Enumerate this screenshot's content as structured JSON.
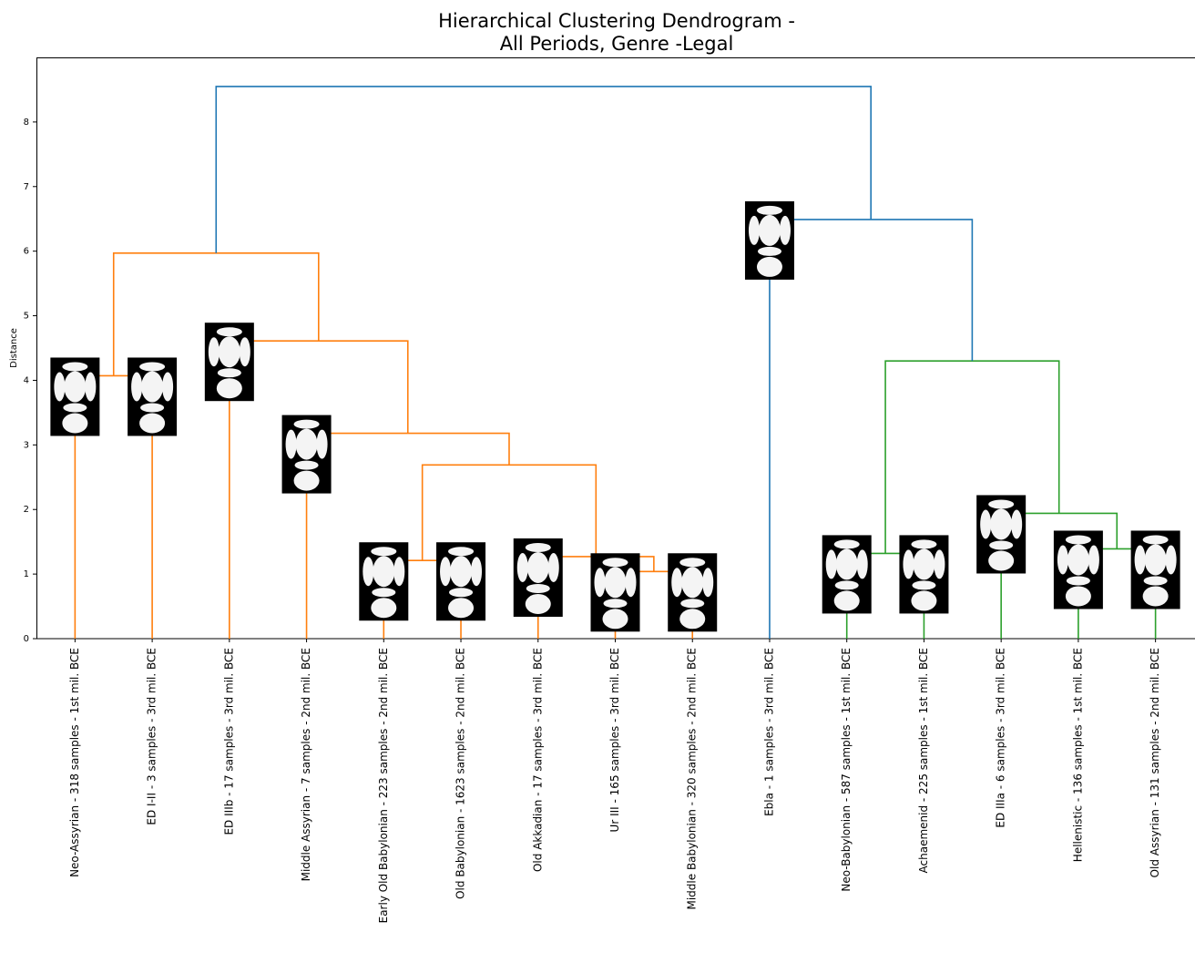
{
  "chart_data": {
    "type": "dendrogram",
    "title": [
      "Hierarchical Clustering Dendrogram -",
      "All Periods, Genre -Legal"
    ],
    "y_label": "Distance",
    "ylim": [
      0,
      9
    ],
    "yticks": [
      0,
      1,
      2,
      3,
      4,
      5,
      6,
      7,
      8
    ],
    "tree": {
      "height": 8.55,
      "color": "#1f77b4",
      "children": [
        {
          "height": 5.97,
          "color": "#ff7f0e",
          "children": [
            {
              "height": 4.07,
              "color": "#ff7f0e",
              "children": [
                {
                  "label": "Neo-Assyrian - 318 samples - 1st mil. BCE"
                },
                {
                  "label": "ED I-II - 3 samples - 3rd mil. BCE"
                }
              ]
            },
            {
              "height": 4.61,
              "color": "#ff7f0e",
              "children": [
                {
                  "label": "ED IIIb - 17 samples - 3rd mil. BCE"
                },
                {
                  "height": 3.18,
                  "color": "#ff7f0e",
                  "children": [
                    {
                      "label": "Middle Assyrian - 7 samples - 2nd mil. BCE"
                    },
                    {
                      "height": 2.69,
                      "color": "#ff7f0e",
                      "children": [
                        {
                          "height": 1.21,
                          "color": "#ff7f0e",
                          "children": [
                            {
                              "label": "Early Old Babylonian - 223 samples - 2nd mil. BCE"
                            },
                            {
                              "label": "Old Babylonian - 1623 samples - 2nd mil. BCE"
                            }
                          ]
                        },
                        {
                          "height": 1.27,
                          "color": "#ff7f0e",
                          "children": [
                            {
                              "label": "Old Akkadian - 17 samples - 3rd mil. BCE"
                            },
                            {
                              "height": 1.04,
                              "color": "#ff7f0e",
                              "children": [
                                {
                                  "label": "Ur III - 165 samples - 3rd mil. BCE"
                                },
                                {
                                  "label": "Middle Babylonian - 320 samples - 2nd mil. BCE"
                                }
                              ]
                            }
                          ]
                        }
                      ]
                    }
                  ]
                }
              ]
            }
          ]
        },
        {
          "height": 6.49,
          "color": "#1f77b4",
          "children": [
            {
              "label": "Ebla - 1 samples - 3rd mil. BCE"
            },
            {
              "height": 4.3,
              "color": "#2ca02c",
              "children": [
                {
                  "height": 1.32,
                  "color": "#2ca02c",
                  "children": [
                    {
                      "label": "Neo-Babylonian - 587 samples - 1st mil. BCE"
                    },
                    {
                      "label": "Achaemenid - 225 samples - 1st mil. BCE"
                    }
                  ]
                },
                {
                  "height": 1.94,
                  "color": "#2ca02c",
                  "children": [
                    {
                      "label": "ED IIIa - 6 samples - 3rd mil. BCE"
                    },
                    {
                      "height": 1.39,
                      "color": "#2ca02c",
                      "children": [
                        {
                          "label": "Hellenistic - 136 samples - 1st mil. BCE"
                        },
                        {
                          "label": "Old Assyrian - 131 samples - 2nd mil. BCE"
                        }
                      ]
                    }
                  ]
                }
              ]
            }
          ]
        }
      ]
    }
  }
}
